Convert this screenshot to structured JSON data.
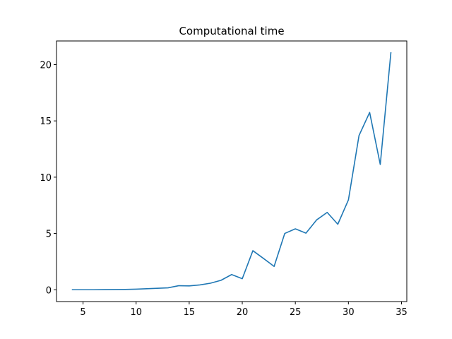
{
  "chart_data": {
    "type": "line",
    "title": "Computational time",
    "xlabel": "",
    "ylabel": "",
    "xlim": [
      2.5,
      35.5
    ],
    "ylim": [
      -1.05,
      22.1
    ],
    "x_ticks": [
      5,
      10,
      15,
      20,
      25,
      30,
      35
    ],
    "y_ticks": [
      0,
      5,
      10,
      15,
      20
    ],
    "grid": false,
    "legend": "none",
    "series": [
      {
        "color": "#1f77b4",
        "x": [
          4,
          5,
          6,
          7,
          8,
          9,
          10,
          11,
          12,
          13,
          14,
          15,
          16,
          17,
          18,
          19,
          20,
          21,
          22,
          23,
          24,
          25,
          26,
          27,
          28,
          29,
          30,
          31,
          32,
          33,
          34
        ],
        "y": [
          0.0,
          0.0,
          0.0,
          0.01,
          0.02,
          0.03,
          0.05,
          0.09,
          0.13,
          0.17,
          0.36,
          0.34,
          0.43,
          0.58,
          0.84,
          1.35,
          0.98,
          3.47,
          2.78,
          2.07,
          5.0,
          5.41,
          5.03,
          6.2,
          6.87,
          5.82,
          7.98,
          13.7,
          15.75,
          11.13,
          21.05
        ]
      }
    ]
  }
}
